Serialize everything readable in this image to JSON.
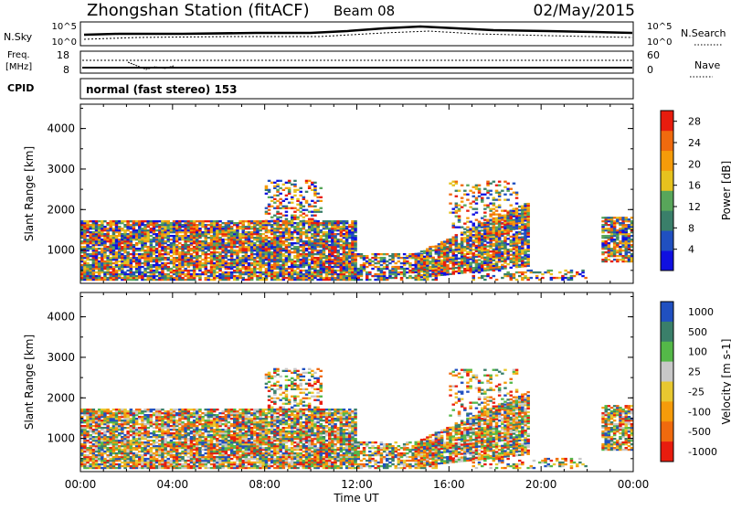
{
  "header": {
    "station": "Zhongshan Station (fitACF)",
    "beam": "Beam 08",
    "date": "02/May/2015"
  },
  "summary_panels": {
    "nsky_label": "N.Sky",
    "nsearch_label": "N.Search",
    "n_tick_top": "10^5",
    "n_tick_bottom": "10^0",
    "freq_label_line1": "Freq.",
    "freq_label_line2": "[MHz]",
    "freq_ticks": [
      "18",
      "8"
    ],
    "nave_label": "Nave",
    "nave_ticks": [
      "60",
      "0"
    ],
    "cpid_label": "CPID",
    "cpid_text": "normal (fast stereo) 153"
  },
  "chart_data": [
    {
      "type": "heatmap",
      "title": "",
      "xlabel": "Time UT",
      "ylabel": "Slant Range [km]",
      "xlim": [
        "00:00",
        "24:00"
      ],
      "x_ticks": [
        "00:00",
        "04:00",
        "08:00",
        "12:00",
        "16:00",
        "20:00",
        "00:00"
      ],
      "ylim": [
        180,
        4600
      ],
      "y_ticks": [
        1000,
        2000,
        3000,
        4000
      ],
      "colorbar": {
        "label": "Power [dB]",
        "range": [
          0,
          30
        ],
        "ticks": [
          4,
          8,
          12,
          16,
          20,
          24,
          28
        ]
      },
      "colors": [
        "#1010e0",
        "#2050c0",
        "#3a7f6a",
        "#58a65a",
        "#e6c21e",
        "#f59b0a",
        "#f06a0e",
        "#e81c0e"
      ]
    },
    {
      "type": "heatmap",
      "title": "",
      "xlabel": "Time UT",
      "ylabel": "Slant Range [km]",
      "xlim": [
        "00:00",
        "24:00"
      ],
      "x_ticks": [
        "00:00",
        "04:00",
        "08:00",
        "12:00",
        "16:00",
        "20:00",
        "00:00"
      ],
      "ylim": [
        180,
        4600
      ],
      "y_ticks": [
        1000,
        2000,
        3000,
        4000
      ],
      "colorbar": {
        "label": "Velocity [m s-1]",
        "tick_labels": [
          "1000",
          "500",
          "100",
          "25",
          "-25",
          "-100",
          "-500",
          "-1000"
        ]
      },
      "colors": [
        "#2050c0",
        "#3a7f6a",
        "#54b848",
        "#c8c8c8",
        "#e8c830",
        "#f59b0a",
        "#f06a0e",
        "#e81c0e"
      ]
    }
  ]
}
